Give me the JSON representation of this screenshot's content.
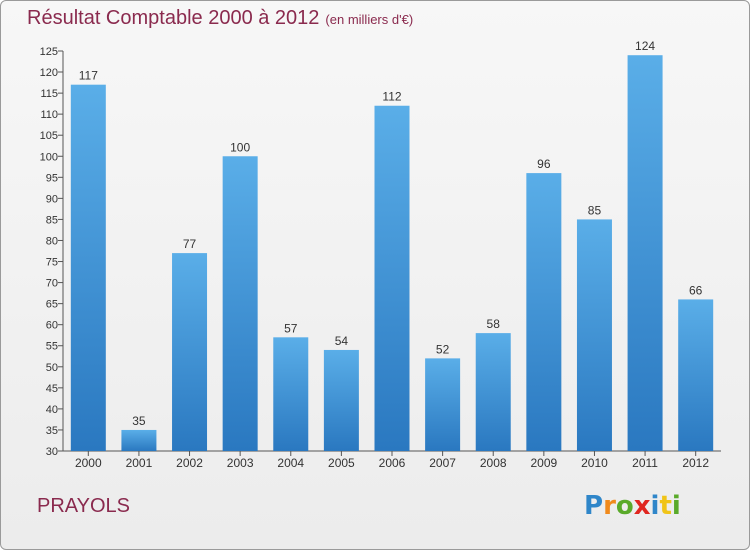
{
  "chart_data": {
    "type": "bar",
    "title": "Résultat Comptable 2000 à 2012",
    "subtitle": "(en milliers d'€)",
    "categories": [
      "2000",
      "2001",
      "2002",
      "2003",
      "2004",
      "2005",
      "2006",
      "2007",
      "2008",
      "2009",
      "2010",
      "2011",
      "2012"
    ],
    "values": [
      117,
      35,
      77,
      100,
      57,
      54,
      112,
      52,
      58,
      96,
      85,
      124,
      66
    ],
    "ylim": [
      30,
      125
    ],
    "yticks": [
      30,
      35,
      40,
      45,
      50,
      55,
      60,
      65,
      70,
      75,
      80,
      85,
      90,
      95,
      100,
      105,
      110,
      115,
      120,
      125
    ],
    "xlabel": "",
    "ylabel": "",
    "grid": false,
    "bar_color": "#3d8fd6"
  },
  "commune": "PRAYOLS",
  "brand": {
    "letters": [
      "P",
      "r",
      "o",
      "x",
      "i",
      "t",
      "i"
    ],
    "colors": [
      "#2f86c9",
      "#f08a1c",
      "#5aaa2a",
      "#e0261f",
      "#2f86c9",
      "#f0c418",
      "#5aaa2a"
    ]
  }
}
